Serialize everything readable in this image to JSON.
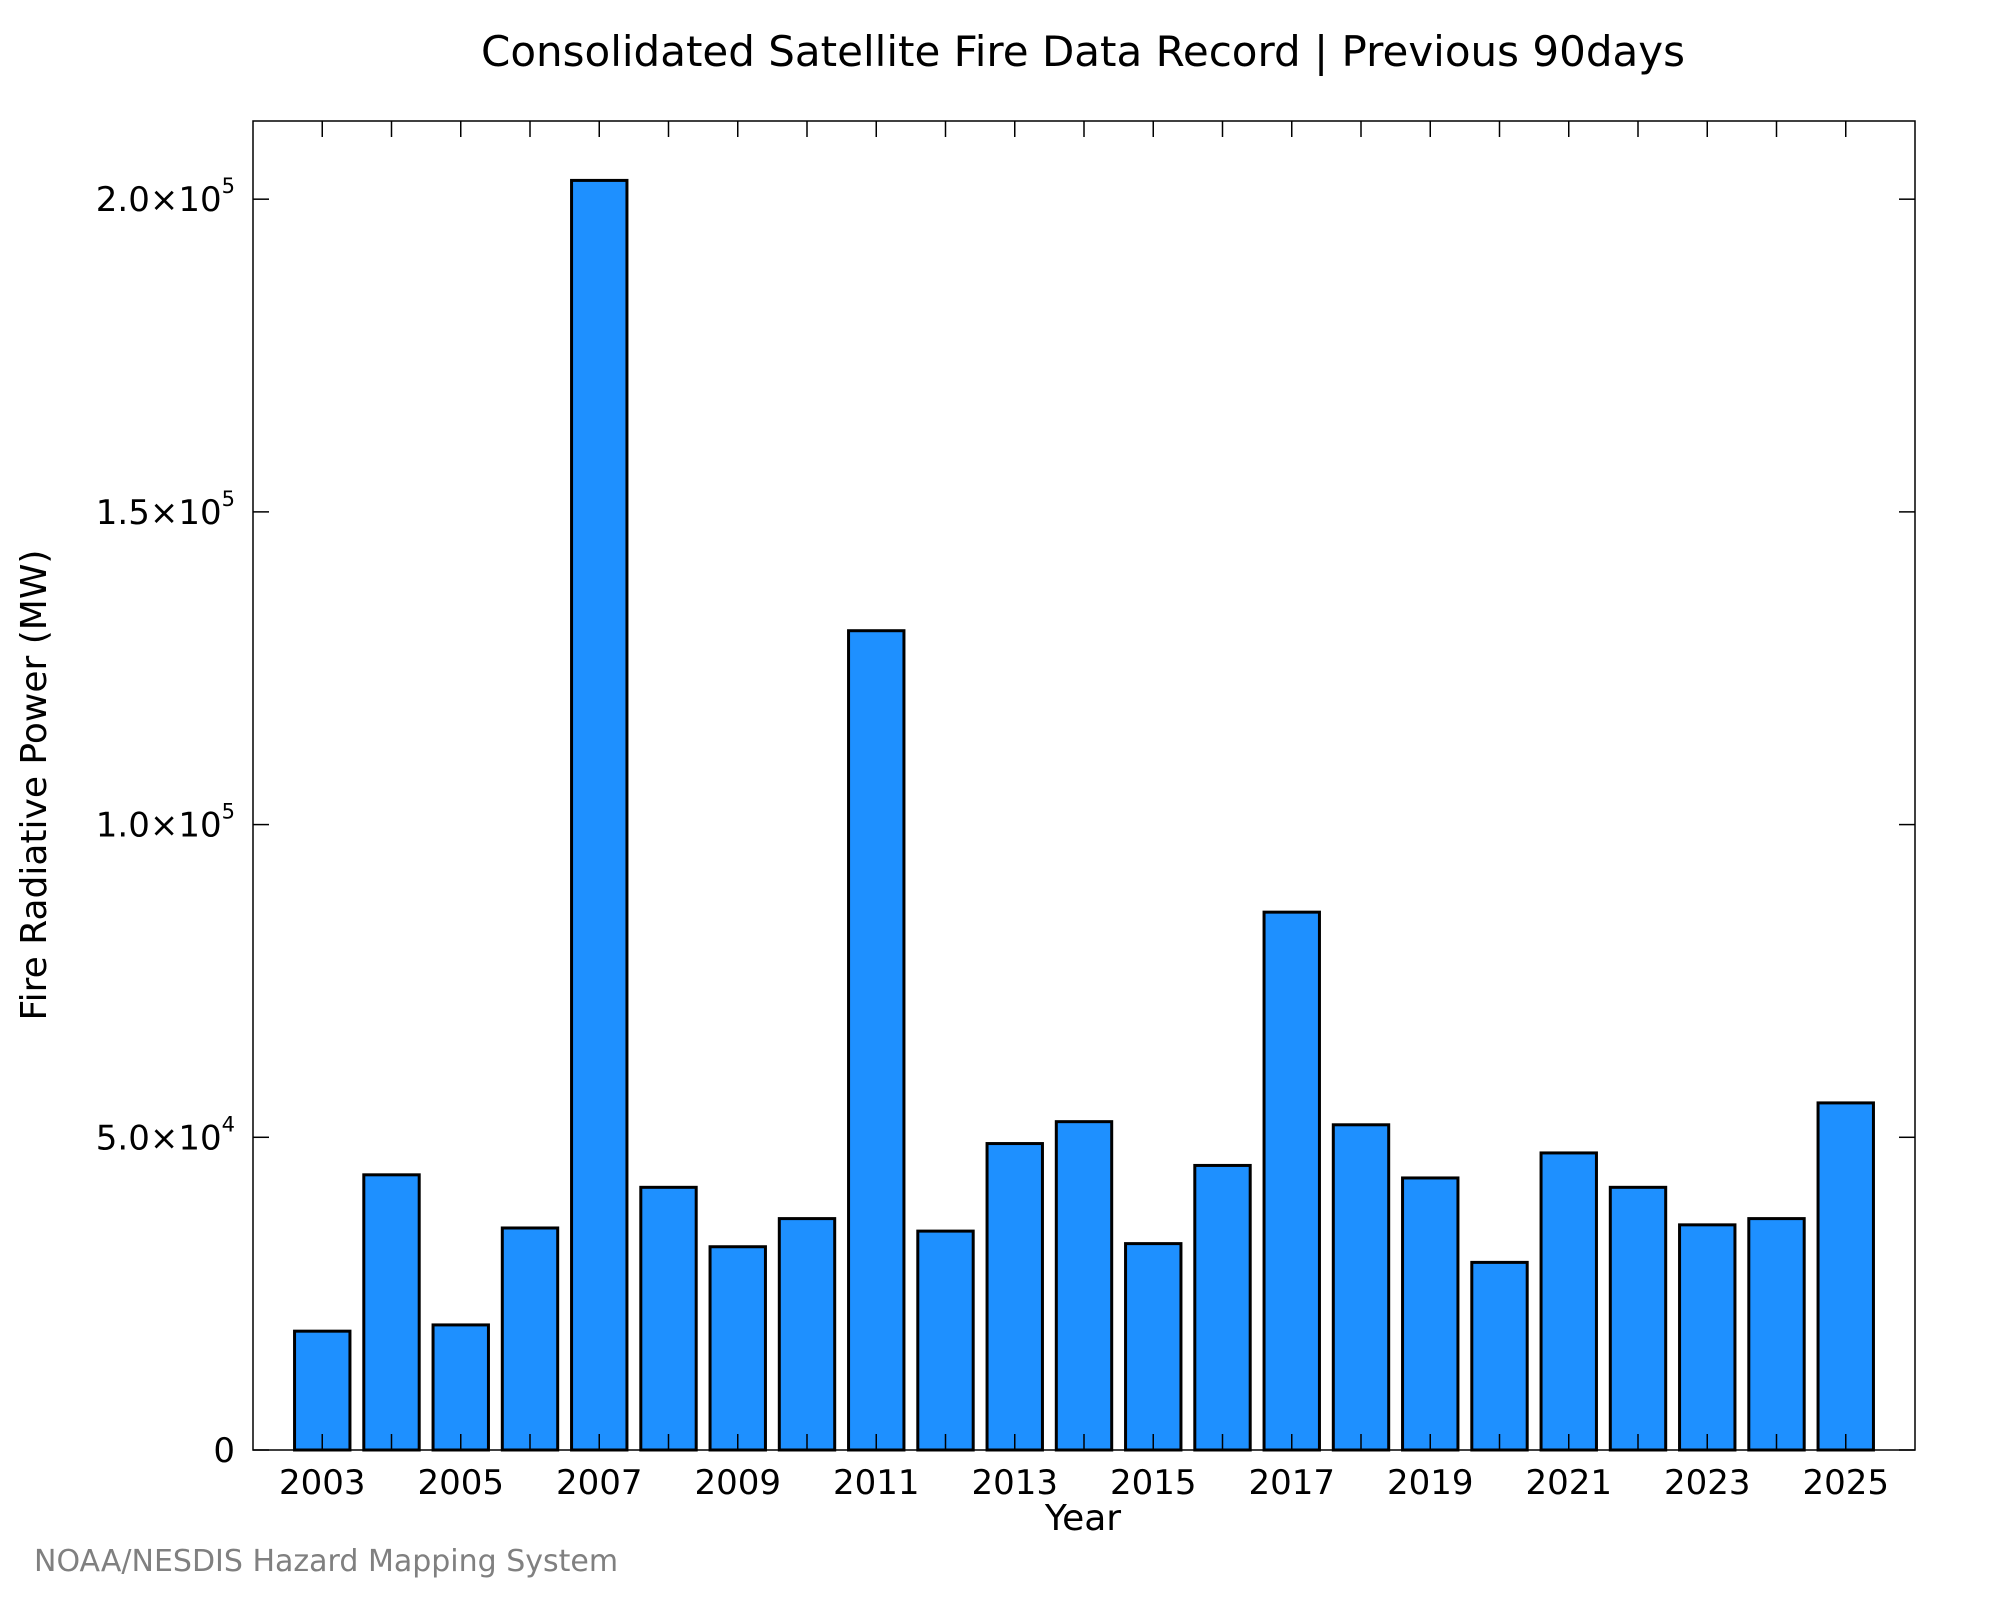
{
  "chart_data": {
    "type": "bar",
    "title": "Consolidated Satellite Fire Data Record | Previous 90days",
    "xlabel": "Year",
    "ylabel": "Fire Radiative Power (MW)",
    "categories": [
      "2003",
      "2004",
      "2005",
      "2006",
      "2007",
      "2008",
      "2009",
      "2010",
      "2011",
      "2012",
      "2013",
      "2014",
      "2015",
      "2016",
      "2017",
      "2018",
      "2019",
      "2020",
      "2021",
      "2022",
      "2023",
      "2024",
      "2025"
    ],
    "values": [
      19000,
      44000,
      20000,
      35500,
      203000,
      42000,
      32500,
      37000,
      131000,
      35000,
      49000,
      52500,
      33000,
      45500,
      86000,
      52000,
      43500,
      30000,
      47500,
      42000,
      36000,
      37000,
      55500
    ],
    "ylim": [
      0,
      212500
    ],
    "xlim": [
      2002,
      2026
    ],
    "y_ticks": [
      {
        "value": 0,
        "mantissa": "0",
        "exponent": ""
      },
      {
        "value": 50000,
        "mantissa": "5.0×10",
        "exponent": "4"
      },
      {
        "value": 100000,
        "mantissa": "1.0×10",
        "exponent": "5"
      },
      {
        "value": 150000,
        "mantissa": "1.5×10",
        "exponent": "5"
      },
      {
        "value": 200000,
        "mantissa": "2.0×10",
        "exponent": "5"
      }
    ],
    "x_ticks": [
      2003,
      2005,
      2007,
      2009,
      2011,
      2013,
      2015,
      2017,
      2019,
      2021,
      2023,
      2025
    ],
    "x_minor_ticks": [
      2004,
      2006,
      2008,
      2010,
      2012,
      2014,
      2016,
      2018,
      2020,
      2022,
      2024
    ],
    "bar_color": "#1e90ff",
    "bar_edge_color": "#000000",
    "grid": false,
    "legend": "none"
  },
  "footer": {
    "credit": "NOAA/NESDIS Hazard Mapping System",
    "credit_color": "#808080"
  }
}
